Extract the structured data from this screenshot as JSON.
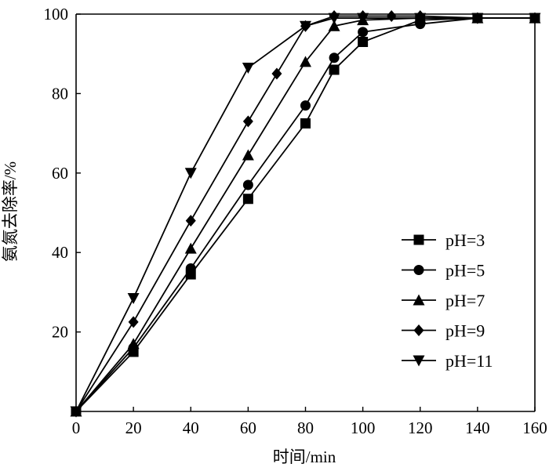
{
  "chart_data": {
    "type": "line",
    "xlabel": "时间/min",
    "ylabel": "氨氮去除率/%",
    "xlim": [
      0,
      160
    ],
    "ylim": [
      0,
      100
    ],
    "xticks": [
      0,
      20,
      40,
      60,
      80,
      100,
      120,
      140,
      160
    ],
    "yticks": [
      20,
      40,
      60,
      80,
      100
    ],
    "grid": false,
    "legend_position": "right",
    "series": [
      {
        "name": "pH=3",
        "marker": "square",
        "x": [
          0,
          20,
          40,
          60,
          80,
          90,
          100,
          120,
          140,
          160
        ],
        "y": [
          0,
          15,
          34.5,
          53.5,
          72.5,
          86,
          93,
          98.5,
          99,
          99
        ]
      },
      {
        "name": "pH=5",
        "marker": "circle",
        "x": [
          0,
          20,
          40,
          60,
          80,
          90,
          100,
          120,
          140,
          160
        ],
        "y": [
          0,
          16,
          36,
          57,
          77,
          89,
          95.5,
          97.5,
          99,
          99
        ]
      },
      {
        "name": "pH=7",
        "marker": "triangle-up",
        "x": [
          0,
          20,
          40,
          60,
          80,
          90,
          100,
          120,
          140,
          160
        ],
        "y": [
          0,
          17,
          41,
          64.5,
          88,
          97,
          98.5,
          99,
          99,
          99
        ]
      },
      {
        "name": "pH=9",
        "marker": "diamond",
        "x": [
          0,
          20,
          40,
          60,
          70,
          80,
          90,
          100,
          110,
          120,
          140,
          160
        ],
        "y": [
          0,
          22.5,
          48,
          73,
          85,
          97,
          99.5,
          99.5,
          99.5,
          99.5,
          99,
          99
        ]
      },
      {
        "name": "pH=11",
        "marker": "triangle-down",
        "x": [
          0,
          20,
          40,
          60,
          80,
          90,
          100,
          120,
          140,
          160
        ],
        "y": [
          0,
          28.5,
          60,
          86.5,
          97,
          99,
          99,
          99,
          99,
          99
        ]
      }
    ]
  }
}
